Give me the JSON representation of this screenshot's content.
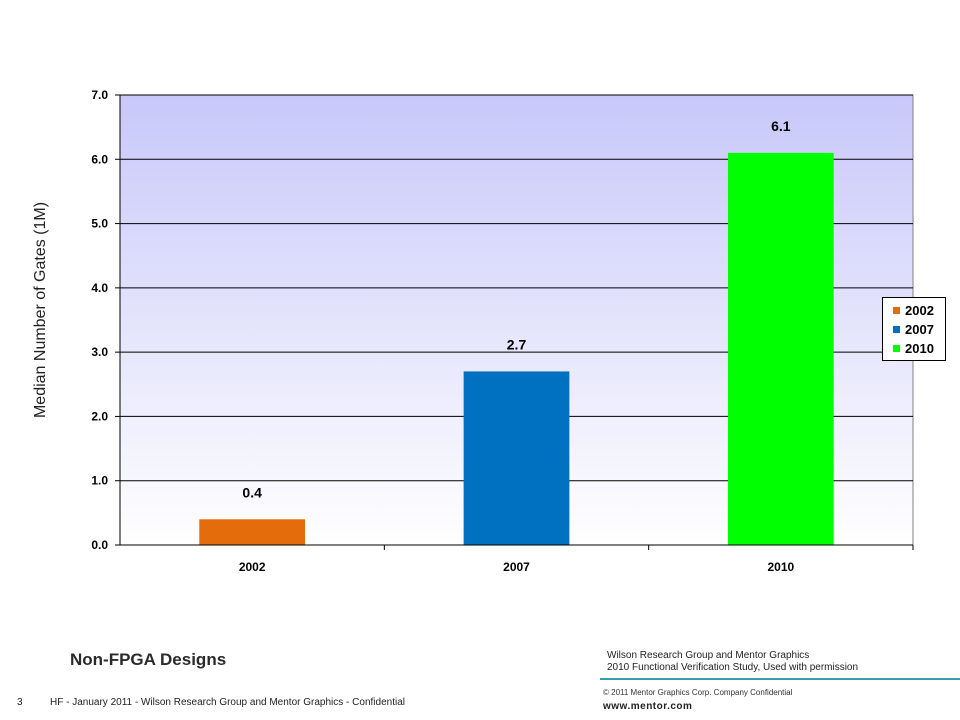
{
  "chart_data": {
    "type": "bar",
    "categories": [
      "2002",
      "2007",
      "2010"
    ],
    "values": [
      0.4,
      2.7,
      6.1
    ],
    "data_labels": [
      "0.4",
      "2.7",
      "6.1"
    ],
    "ylabel": "Median Number of Gates (1M)",
    "xlabel": "",
    "ylim": [
      0,
      7
    ],
    "yticks": [
      "0.0",
      "1.0",
      "2.0",
      "3.0",
      "4.0",
      "5.0",
      "6.0",
      "7.0"
    ],
    "grid": true,
    "legend_position": "right",
    "legend": [
      "2002",
      "2007",
      "2010"
    ],
    "colors": [
      "#e46c0a",
      "#0070c0",
      "#00ff00"
    ]
  },
  "colors": {
    "plot_bg_top": "#c8c8fa",
    "plot_bg_bottom": "#ffffff"
  },
  "footer": {
    "title": "Non-FPGA Designs",
    "source_line1": "Wilson Research Group and Mentor Graphics",
    "source_line2": "2010 Functional Verification Study,  Used with permission",
    "copyright": "© 2011 Mentor Graphics Corp. Company Confidential",
    "website": "www.mentor.com",
    "page_number": "3",
    "note": "HF - January 2011 - Wilson Research Group and Mentor Graphics - Confidential"
  }
}
